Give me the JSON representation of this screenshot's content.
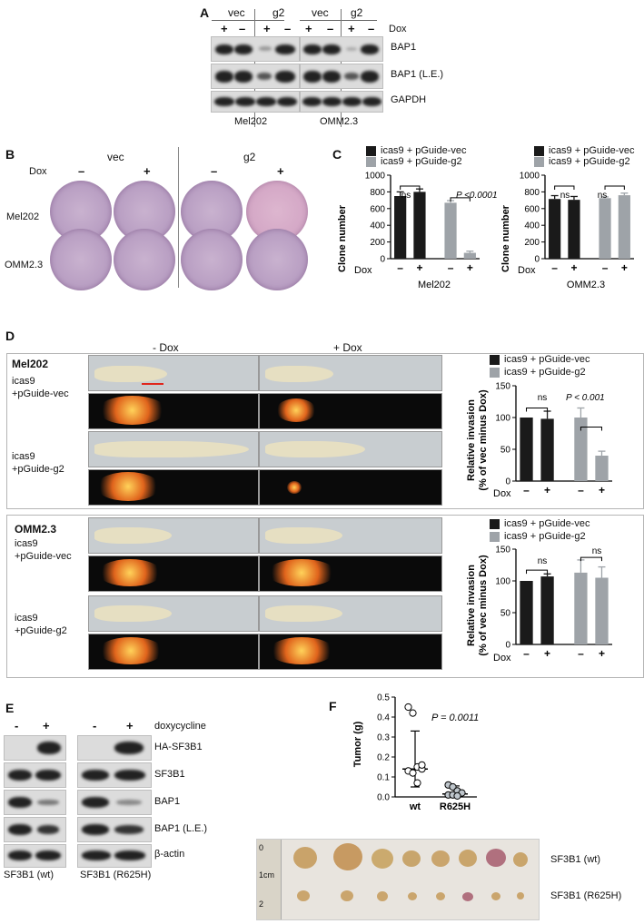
{
  "panelA": {
    "label": "A",
    "group_labels": [
      "vec",
      "g2",
      "vec",
      "g2"
    ],
    "dox_label": "Dox",
    "dox_signs": [
      "+",
      "–",
      "+",
      "–",
      "+",
      "–",
      "+",
      "–"
    ],
    "blot_labels": [
      "BAP1",
      "BAP1 (L.E.)",
      "GAPDH"
    ],
    "cell_lines": [
      "Mel202",
      "OMM2.3"
    ]
  },
  "panelB": {
    "label": "B",
    "col_groups": [
      "vec",
      "g2"
    ],
    "dox_label": "Dox",
    "dox_signs": [
      "–",
      "+",
      "–",
      "+"
    ],
    "rows": [
      "Mel202",
      "OMM2.3"
    ]
  },
  "panelC": {
    "label": "C",
    "legend": [
      "icas9 + pGuide-vec",
      "icas9 + pGuide-g2"
    ],
    "colors": {
      "vec": "#1a1a1a",
      "g2": "#9ea3a8"
    },
    "ylabel": "Clone number",
    "dox_label": "Dox",
    "dox_signs": [
      "–",
      "+",
      "–",
      "+"
    ],
    "charts": [
      {
        "title": "Mel202",
        "ns_label": "ns",
        "p_label": "P <0.0001"
      },
      {
        "title": "OMM2.3",
        "ns_label": "ns",
        "ns2_label": "ns"
      }
    ]
  },
  "panelD": {
    "label": "D",
    "minus_dox": "- Dox",
    "plus_dox": "+ Dox",
    "boxes": [
      {
        "cell": "Mel202",
        "row_labels": [
          "icas9",
          "+pGuide-vec",
          "icas9",
          "+pGuide-g2"
        ],
        "ns_label": "ns",
        "p_label": "P < 0.001"
      },
      {
        "cell": "OMM2.3",
        "row_labels": [
          "icas9",
          "+pGuide-vec",
          "icas9",
          "+pGuide-g2"
        ],
        "ns_label": "ns",
        "ns2_label": "ns"
      }
    ],
    "legend": [
      "icas9 + pGuide-vec",
      "icas9 + pGuide-g2"
    ],
    "ylabel": "Relative invasion",
    "ylabel2": "(% of vec minus Dox)",
    "dox_label": "Dox",
    "dox_signs": [
      "–",
      "+",
      "–",
      "+"
    ]
  },
  "panelE": {
    "label": "E",
    "signs": [
      "-",
      "+",
      "-",
      "+"
    ],
    "treatment": "doxycycline",
    "blot_labels": [
      "HA-SF3B1",
      "SF3B1",
      "BAP1",
      "BAP1 (L.E.)",
      "β-actin"
    ],
    "groups": [
      "SF3B1 (wt)",
      "SF3B1 (R625H)"
    ]
  },
  "panelF": {
    "label": "F",
    "p_label": "P = 0.0011",
    "ylabel": "Tumor (g)",
    "categories": [
      "wt",
      "R625H"
    ],
    "row_labels": [
      "SF3B1 (wt)",
      "SF3B1 (R625H)"
    ],
    "ruler_marks": [
      "0",
      "1cm",
      "2"
    ]
  },
  "chart_data": [
    {
      "type": "bar",
      "title": "Mel202",
      "ylabel": "Clone number",
      "ylim": [
        0,
        1000
      ],
      "yticks": [
        0,
        200,
        400,
        600,
        800,
        1000
      ],
      "categories": [
        "–",
        "+",
        "–",
        "+"
      ],
      "series": [
        {
          "name": "icas9 + pGuide-vec",
          "values": [
            750,
            800,
            null,
            null
          ],
          "errors": [
            50,
            35,
            null,
            null
          ]
        },
        {
          "name": "icas9 + pGuide-g2",
          "values": [
            null,
            null,
            670,
            70
          ],
          "errors": [
            null,
            null,
            25,
            20
          ]
        }
      ]
    },
    {
      "type": "bar",
      "title": "OMM2.3",
      "ylabel": "Clone number",
      "ylim": [
        0,
        1000
      ],
      "yticks": [
        0,
        200,
        400,
        600,
        800,
        1000
      ],
      "categories": [
        "–",
        "+",
        "–",
        "+"
      ],
      "series": [
        {
          "name": "icas9 + pGuide-vec",
          "values": [
            715,
            705,
            null,
            null
          ],
          "errors": [
            40,
            40,
            null,
            null
          ]
        },
        {
          "name": "icas9 + pGuide-g2",
          "values": [
            null,
            null,
            725,
            760
          ],
          "errors": [
            null,
            null,
            15,
            25
          ]
        }
      ]
    },
    {
      "type": "bar",
      "title": "Mel202",
      "ylabel": "Relative invasion (% of vec minus Dox)",
      "ylim": [
        0,
        150
      ],
      "yticks": [
        0,
        50,
        100,
        150
      ],
      "categories": [
        "–",
        "+",
        "–",
        "+"
      ],
      "series": [
        {
          "name": "icas9 + pGuide-vec",
          "values": [
            100,
            98,
            null,
            null
          ],
          "errors": [
            0,
            12,
            null,
            null
          ]
        },
        {
          "name": "icas9 + pGuide-g2",
          "values": [
            null,
            null,
            100,
            40
          ],
          "errors": [
            null,
            null,
            15,
            7
          ]
        }
      ]
    },
    {
      "type": "bar",
      "title": "OMM2.3",
      "ylabel": "Relative invasion (% of vec minus Dox)",
      "ylim": [
        0,
        150
      ],
      "yticks": [
        0,
        50,
        100,
        150
      ],
      "categories": [
        "–",
        "+",
        "–",
        "+"
      ],
      "series": [
        {
          "name": "icas9 + pGuide-vec",
          "values": [
            100,
            107,
            null,
            null
          ],
          "errors": [
            0,
            4,
            null,
            null
          ]
        },
        {
          "name": "icas9 + pGuide-g2",
          "values": [
            null,
            null,
            113,
            105
          ],
          "errors": [
            null,
            null,
            20,
            17
          ]
        }
      ]
    },
    {
      "type": "scatter",
      "ylabel": "Tumor (g)",
      "ylim": [
        0,
        0.5
      ],
      "yticks": [
        0.0,
        0.1,
        0.2,
        0.3,
        0.4,
        0.5
      ],
      "categories": [
        "wt",
        "R625H"
      ],
      "series": [
        {
          "name": "wt",
          "values": [
            0.45,
            0.42,
            0.15,
            0.14,
            0.13,
            0.12,
            0.07,
            0.16
          ],
          "median": 0.14,
          "range": [
            0.05,
            0.33
          ]
        },
        {
          "name": "R625H",
          "values": [
            0.06,
            0.05,
            0.03,
            0.02,
            0.01,
            0.01,
            0.005
          ],
          "median": 0.015,
          "range": [
            0.0,
            0.055
          ]
        }
      ]
    }
  ]
}
